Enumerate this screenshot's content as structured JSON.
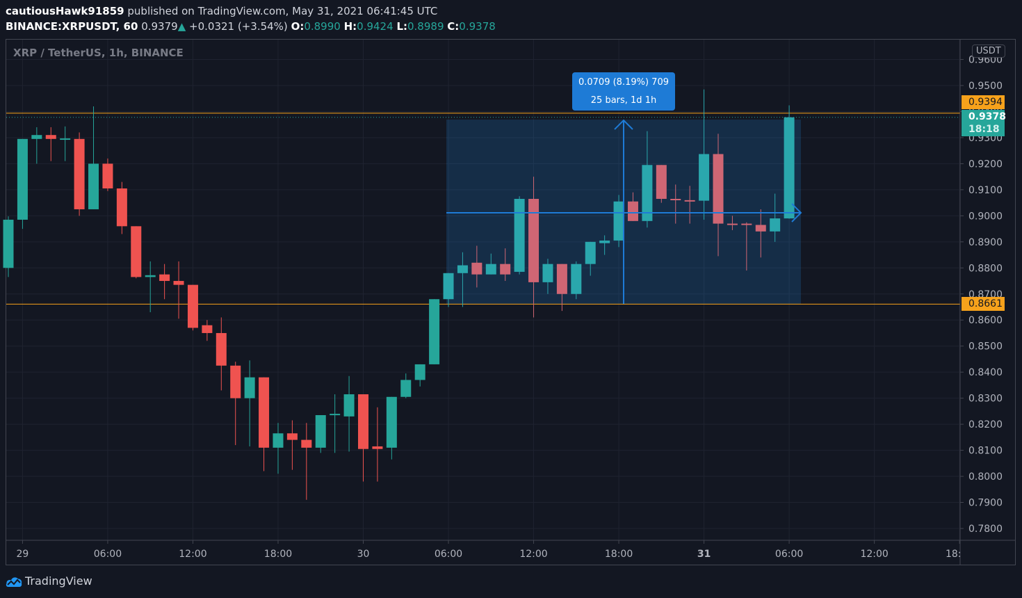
{
  "header": {
    "author": "cautiousHawk91859",
    "published": "published on TradingView.com, May 31, 2021 06:41:45 UTC",
    "symbol": "BINANCE:XRPUSDT, 60",
    "last": "0.9379",
    "change": "+0.0321 (+3.54%)",
    "o_label": "O:",
    "o": "0.8990",
    "h_label": "H:",
    "h": "0.9424",
    "l_label": "L:",
    "l": "0.8989",
    "c_label": "C:",
    "c": "0.9378"
  },
  "legend_title": "XRP / TetherUS, 1h, BINANCE",
  "currency_label": "USDT",
  "price_tags": {
    "upper_line": "0.9394",
    "last_price": "0.9378",
    "countdown": "18:18",
    "lower_line": "0.8661"
  },
  "measure_tooltip": {
    "line1": "0.0709 (8.19%) 709",
    "line2": "25 bars, 1d 1h"
  },
  "footer": {
    "brand": "TradingView"
  },
  "colors": {
    "background": "#131722",
    "up": "#26a69a",
    "down": "#ef5350",
    "hline": "#f7a21b",
    "measure": "#1e7bd6",
    "grid": "#1f2330"
  },
  "chart_data": {
    "type": "candlestick",
    "title": "XRP / TetherUS, 1h, BINANCE",
    "xlabel": "",
    "ylabel": "USDT",
    "ylim": [
      0.776,
      0.961
    ],
    "grid": true,
    "y_ticks": [
      "0.9600",
      "0.9500",
      "0.9400",
      "0.9300",
      "0.9200",
      "0.9100",
      "0.9000",
      "0.8900",
      "0.8800",
      "0.8700",
      "0.8600",
      "0.8500",
      "0.8400",
      "0.8300",
      "0.8200",
      "0.8100",
      "0.8000",
      "0.7900",
      "0.7800"
    ],
    "x_ticks": [
      {
        "label": "29",
        "bar": 1
      },
      {
        "label": "06:00",
        "bar": 7
      },
      {
        "label": "12:00",
        "bar": 13
      },
      {
        "label": "18:00",
        "bar": 19
      },
      {
        "label": "30",
        "bar": 25
      },
      {
        "label": "06:00",
        "bar": 31
      },
      {
        "label": "12:00",
        "bar": 37
      },
      {
        "label": "18:00",
        "bar": 43
      },
      {
        "label": "31",
        "bar": 49
      },
      {
        "label": "06:00",
        "bar": 55
      },
      {
        "label": "12:00",
        "bar": 61
      },
      {
        "label": "18:00",
        "bar": 67
      }
    ],
    "horizontal_lines": [
      0.9394,
      0.8661
    ],
    "candles": [
      {
        "o": 0.88,
        "h": 0.8998,
        "l": 0.8765,
        "c": 0.8985
      },
      {
        "o": 0.8985,
        "h": 0.9155,
        "l": 0.895,
        "c": 0.9295
      },
      {
        "o": 0.9295,
        "h": 0.934,
        "l": 0.92,
        "c": 0.931
      },
      {
        "o": 0.931,
        "h": 0.934,
        "l": 0.921,
        "c": 0.9295
      },
      {
        "o": 0.9295,
        "h": 0.9343,
        "l": 0.921,
        "c": 0.9297
      },
      {
        "o": 0.9295,
        "h": 0.932,
        "l": 0.9,
        "c": 0.9025
      },
      {
        "o": 0.9025,
        "h": 0.942,
        "l": 0.9025,
        "c": 0.92
      },
      {
        "o": 0.92,
        "h": 0.922,
        "l": 0.9095,
        "c": 0.9105
      },
      {
        "o": 0.9105,
        "h": 0.913,
        "l": 0.893,
        "c": 0.896
      },
      {
        "o": 0.896,
        "h": 0.893,
        "l": 0.876,
        "c": 0.8765
      },
      {
        "o": 0.8765,
        "h": 0.8825,
        "l": 0.863,
        "c": 0.8772
      },
      {
        "o": 0.8775,
        "h": 0.8815,
        "l": 0.868,
        "c": 0.875
      },
      {
        "o": 0.875,
        "h": 0.8825,
        "l": 0.8605,
        "c": 0.8735
      },
      {
        "o": 0.8735,
        "h": 0.8735,
        "l": 0.856,
        "c": 0.857
      },
      {
        "o": 0.858,
        "h": 0.86,
        "l": 0.852,
        "c": 0.855
      },
      {
        "o": 0.855,
        "h": 0.861,
        "l": 0.833,
        "c": 0.8425
      },
      {
        "o": 0.8425,
        "h": 0.844,
        "l": 0.812,
        "c": 0.83
      },
      {
        "o": 0.83,
        "h": 0.8445,
        "l": 0.8115,
        "c": 0.838
      },
      {
        "o": 0.838,
        "h": 0.838,
        "l": 0.802,
        "c": 0.811
      },
      {
        "o": 0.811,
        "h": 0.8205,
        "l": 0.801,
        "c": 0.8165
      },
      {
        "o": 0.8165,
        "h": 0.8215,
        "l": 0.8025,
        "c": 0.814
      },
      {
        "o": 0.814,
        "h": 0.8205,
        "l": 0.791,
        "c": 0.811
      },
      {
        "o": 0.811,
        "h": 0.8235,
        "l": 0.809,
        "c": 0.8235
      },
      {
        "o": 0.8235,
        "h": 0.8315,
        "l": 0.809,
        "c": 0.824
      },
      {
        "o": 0.823,
        "h": 0.8385,
        "l": 0.8095,
        "c": 0.8315
      },
      {
        "o": 0.8315,
        "h": 0.8315,
        "l": 0.798,
        "c": 0.8105
      },
      {
        "o": 0.8115,
        "h": 0.8265,
        "l": 0.798,
        "c": 0.8105
      },
      {
        "o": 0.811,
        "h": 0.8305,
        "l": 0.8065,
        "c": 0.8305
      },
      {
        "o": 0.8305,
        "h": 0.8395,
        "l": 0.83,
        "c": 0.837
      },
      {
        "o": 0.837,
        "h": 0.8425,
        "l": 0.8345,
        "c": 0.843
      },
      {
        "o": 0.843,
        "h": 0.8665,
        "l": 0.843,
        "c": 0.868
      },
      {
        "o": 0.868,
        "h": 0.8765,
        "l": 0.865,
        "c": 0.878
      },
      {
        "o": 0.878,
        "h": 0.886,
        "l": 0.865,
        "c": 0.881
      },
      {
        "o": 0.882,
        "h": 0.8885,
        "l": 0.8725,
        "c": 0.8775
      },
      {
        "o": 0.8775,
        "h": 0.8855,
        "l": 0.8775,
        "c": 0.8815
      },
      {
        "o": 0.8815,
        "h": 0.8875,
        "l": 0.875,
        "c": 0.8775
      },
      {
        "o": 0.8785,
        "h": 0.9075,
        "l": 0.8775,
        "c": 0.9065
      },
      {
        "o": 0.9065,
        "h": 0.915,
        "l": 0.861,
        "c": 0.8745
      },
      {
        "o": 0.8745,
        "h": 0.8835,
        "l": 0.87,
        "c": 0.8815
      },
      {
        "o": 0.8815,
        "h": 0.8815,
        "l": 0.8635,
        "c": 0.87
      },
      {
        "o": 0.87,
        "h": 0.8825,
        "l": 0.868,
        "c": 0.8815
      },
      {
        "o": 0.8815,
        "h": 0.885,
        "l": 0.877,
        "c": 0.89
      },
      {
        "o": 0.8895,
        "h": 0.8925,
        "l": 0.885,
        "c": 0.8905
      },
      {
        "o": 0.8905,
        "h": 0.908,
        "l": 0.888,
        "c": 0.9055
      },
      {
        "o": 0.9055,
        "h": 0.909,
        "l": 0.899,
        "c": 0.898
      },
      {
        "o": 0.898,
        "h": 0.9325,
        "l": 0.8955,
        "c": 0.9195
      },
      {
        "o": 0.9195,
        "h": 0.919,
        "l": 0.905,
        "c": 0.9065
      },
      {
        "o": 0.9065,
        "h": 0.912,
        "l": 0.897,
        "c": 0.906
      },
      {
        "o": 0.906,
        "h": 0.9115,
        "l": 0.897,
        "c": 0.9058
      },
      {
        "o": 0.9058,
        "h": 0.9485,
        "l": 0.8985,
        "c": 0.9237
      },
      {
        "o": 0.9237,
        "h": 0.9315,
        "l": 0.8845,
        "c": 0.897
      },
      {
        "o": 0.897,
        "h": 0.9,
        "l": 0.8945,
        "c": 0.8965
      },
      {
        "o": 0.897,
        "h": 0.8975,
        "l": 0.879,
        "c": 0.8965
      },
      {
        "o": 0.8965,
        "h": 0.9025,
        "l": 0.884,
        "c": 0.894
      },
      {
        "o": 0.894,
        "h": 0.9085,
        "l": 0.89,
        "c": 0.899
      },
      {
        "o": 0.899,
        "h": 0.9424,
        "l": 0.8989,
        "c": 0.9378
      }
    ]
  }
}
